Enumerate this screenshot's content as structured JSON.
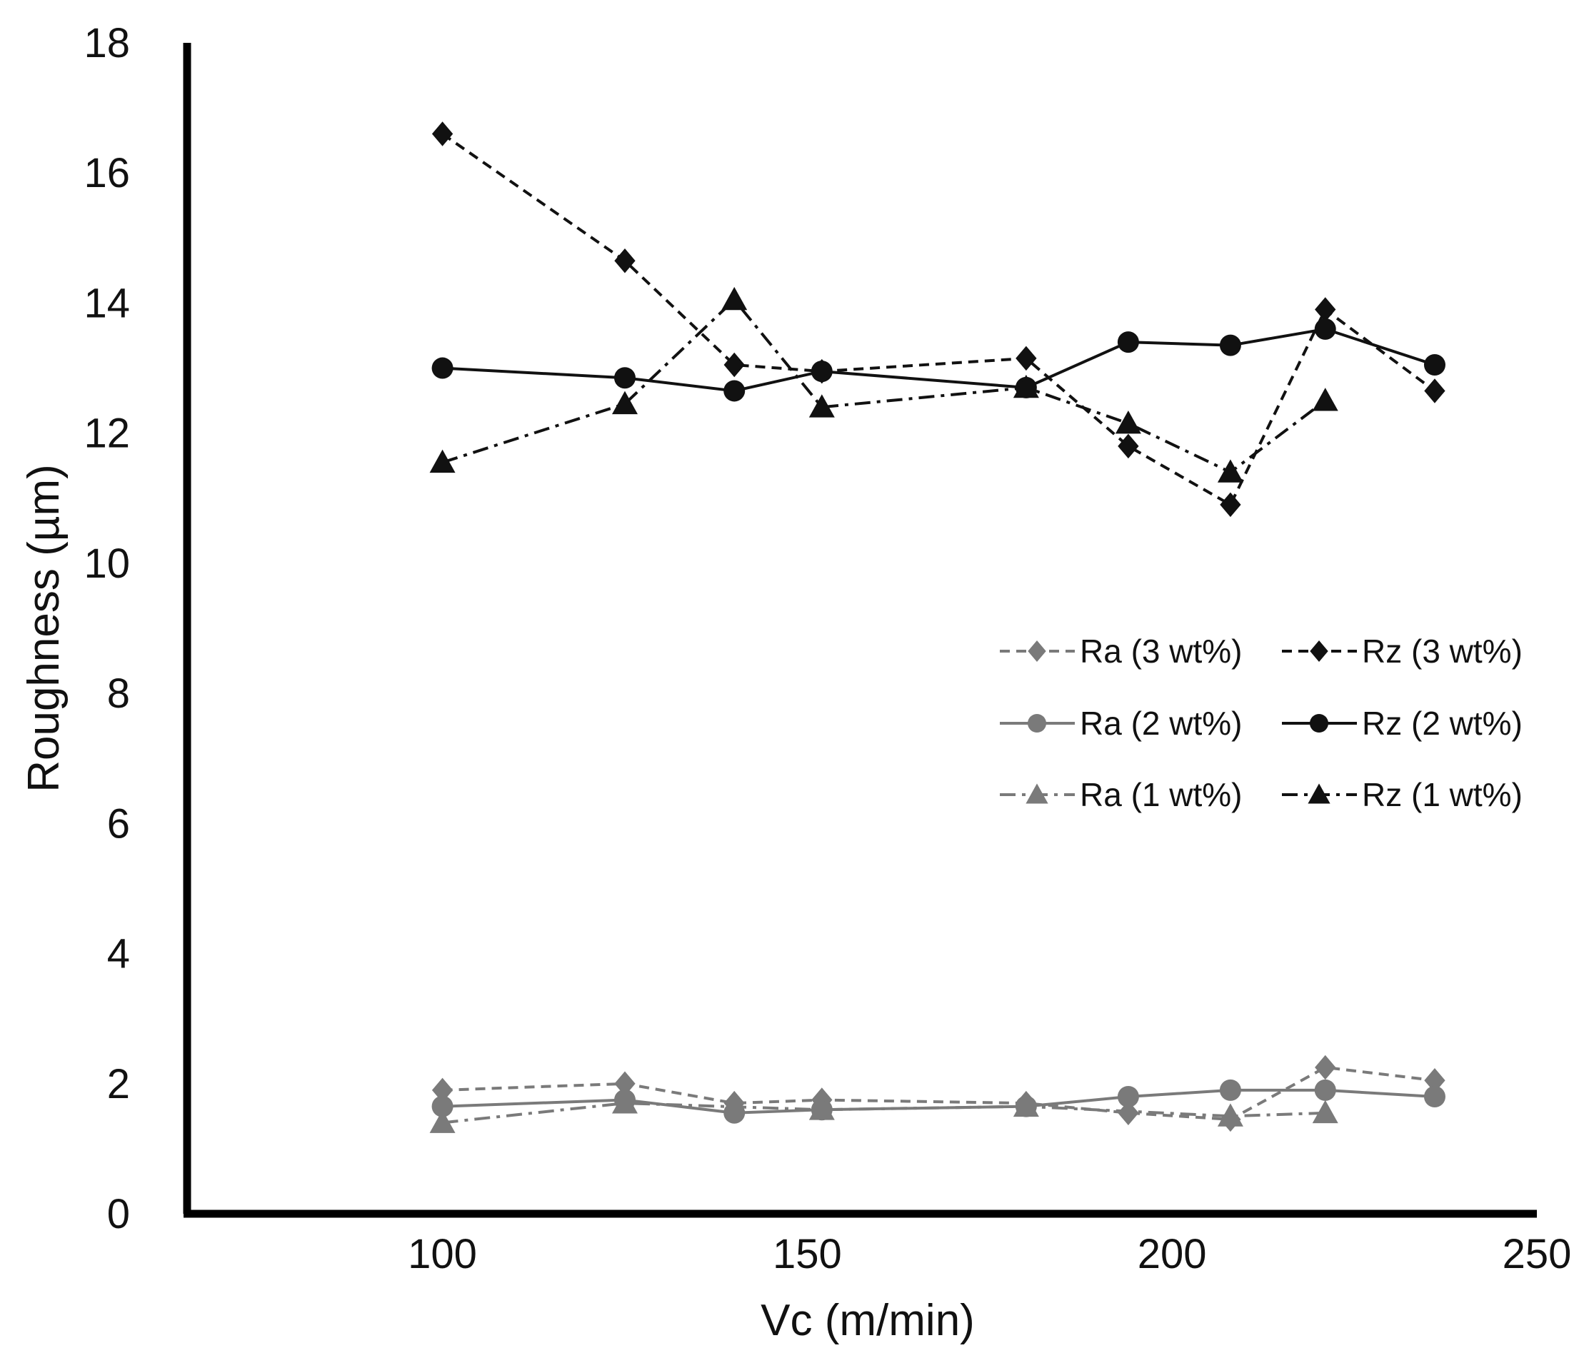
{
  "chart_data": {
    "type": "line",
    "title": "",
    "xlabel": "Vc (m/min)",
    "ylabel": "Roughness (µm)",
    "xlim": [
      65,
      250
    ],
    "ylim": [
      0,
      18
    ],
    "xticks": [
      "100",
      "150",
      "200",
      "250"
    ],
    "yticks": [
      "0",
      "2",
      "4",
      "6",
      "8",
      "10",
      "12",
      "14",
      "16",
      "18"
    ],
    "grid": false,
    "legend_position": "right, middle",
    "series": [
      {
        "name": "Ra (3 wt%)",
        "color": "#7a7a7a",
        "line": "dashed",
        "marker": "diamond",
        "x": [
          100,
          125,
          140,
          152,
          180,
          194,
          208,
          221,
          236
        ],
        "y": [
          1.9,
          2.0,
          1.7,
          1.75,
          1.7,
          1.55,
          1.45,
          2.25,
          2.05
        ]
      },
      {
        "name": "Ra (2 wt%)",
        "color": "#7a7a7a",
        "line": "solid",
        "marker": "circle",
        "x": [
          100,
          125,
          140,
          152,
          180,
          194,
          208,
          221,
          236
        ],
        "y": [
          1.65,
          1.75,
          1.55,
          1.6,
          1.65,
          1.8,
          1.9,
          1.9,
          1.8
        ]
      },
      {
        "name": "Ra (1 wt%)",
        "color": "#7a7a7a",
        "line": "dashdot",
        "marker": "triangle",
        "x": [
          100,
          125,
          152,
          180,
          208,
          221
        ],
        "y": [
          1.4,
          1.7,
          1.6,
          1.65,
          1.5,
          1.55
        ]
      },
      {
        "name": "Rz (3 wt%)",
        "color": "#111111",
        "line": "dashed",
        "marker": "diamond",
        "x": [
          100,
          125,
          140,
          152,
          180,
          194,
          208,
          221,
          236
        ],
        "y": [
          16.6,
          14.65,
          13.05,
          12.95,
          13.15,
          11.8,
          10.9,
          13.9,
          12.65
        ]
      },
      {
        "name": "Rz (2 wt%)",
        "color": "#111111",
        "line": "solid",
        "marker": "circle",
        "x": [
          100,
          125,
          140,
          152,
          180,
          194,
          208,
          221,
          236
        ],
        "y": [
          13.0,
          12.85,
          12.65,
          12.95,
          12.7,
          13.4,
          13.35,
          13.6,
          13.05
        ]
      },
      {
        "name": "Rz (1 wt%)",
        "color": "#111111",
        "line": "dashdot",
        "marker": "triangle",
        "x": [
          100,
          125,
          140,
          152,
          180,
          194,
          208,
          221
        ],
        "y": [
          11.55,
          12.45,
          14.05,
          12.4,
          12.7,
          12.15,
          11.4,
          12.5
        ]
      }
    ]
  }
}
